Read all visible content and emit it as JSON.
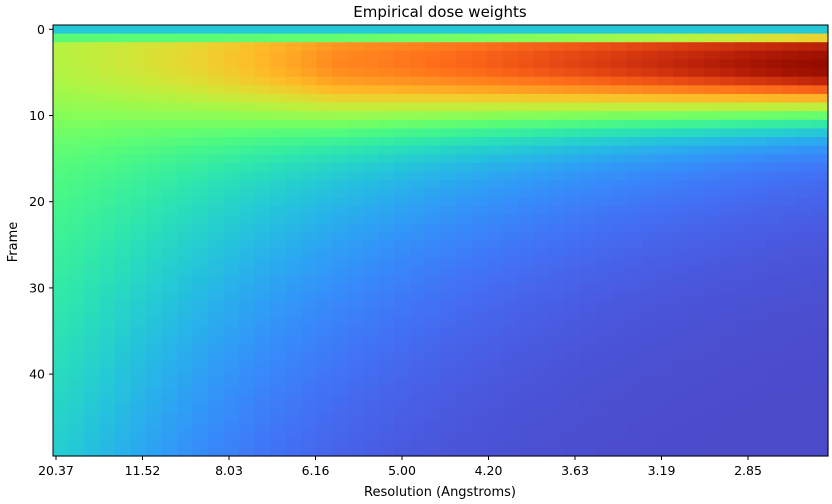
{
  "chart_data": {
    "type": "heatmap",
    "title": "Empirical dose weights",
    "xlabel": "Resolution (Angstroms)",
    "ylabel": "Frame",
    "x_tick_labels": [
      "20.37",
      "11.52",
      "8.03",
      "6.16",
      "5.00",
      "4.20",
      "3.63",
      "3.19",
      "2.85"
    ],
    "y_tick_labels": [
      "0",
      "10",
      "20",
      "30",
      "40"
    ],
    "y_ticks": [
      0,
      10,
      20,
      30,
      40
    ],
    "ylim": [
      49.5,
      -0.5
    ],
    "x_columns": 50,
    "frames": 50,
    "colormap": "turbo",
    "value_range": [
      0,
      1
    ],
    "description_of_values": "weight per frame and resolution shell",
    "colors": {
      "low": "#30123b",
      "mid": "#1ae4b6",
      "high": "#7a0403"
    }
  }
}
